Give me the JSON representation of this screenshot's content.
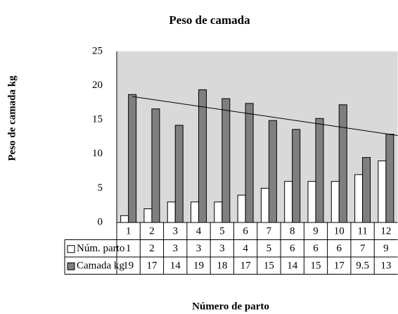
{
  "chart_data": {
    "type": "bar",
    "title": "Peso de camada",
    "x_label": "Número de parto",
    "y_label": "Peso de camada kg",
    "categories": [
      "1",
      "2",
      "3",
      "4",
      "5",
      "6",
      "7",
      "8",
      "9",
      "10",
      "11",
      "12"
    ],
    "series": [
      {
        "name": "Núm. parto",
        "color": "#ffffff",
        "values": [
          1,
          2,
          3,
          3,
          3,
          4,
          5,
          6,
          6,
          6,
          7,
          9
        ]
      },
      {
        "name": "Camada kg",
        "color": "#7f7f7f",
        "values": [
          18.7,
          16.6,
          14.2,
          19.4,
          18.1,
          17.4,
          14.9,
          13.6,
          15.2,
          17.2,
          9.5,
          12.9
        ],
        "value_labels": [
          "19",
          "17",
          "14",
          "19",
          "18",
          "17",
          "15",
          "14",
          "15",
          "17",
          "9.5",
          "13"
        ]
      }
    ],
    "trendline": "linear",
    "ylim": [
      0,
      25
    ],
    "yticks": [
      0,
      5,
      10,
      15,
      20,
      25
    ],
    "plot_background": "#d9d9d9"
  }
}
